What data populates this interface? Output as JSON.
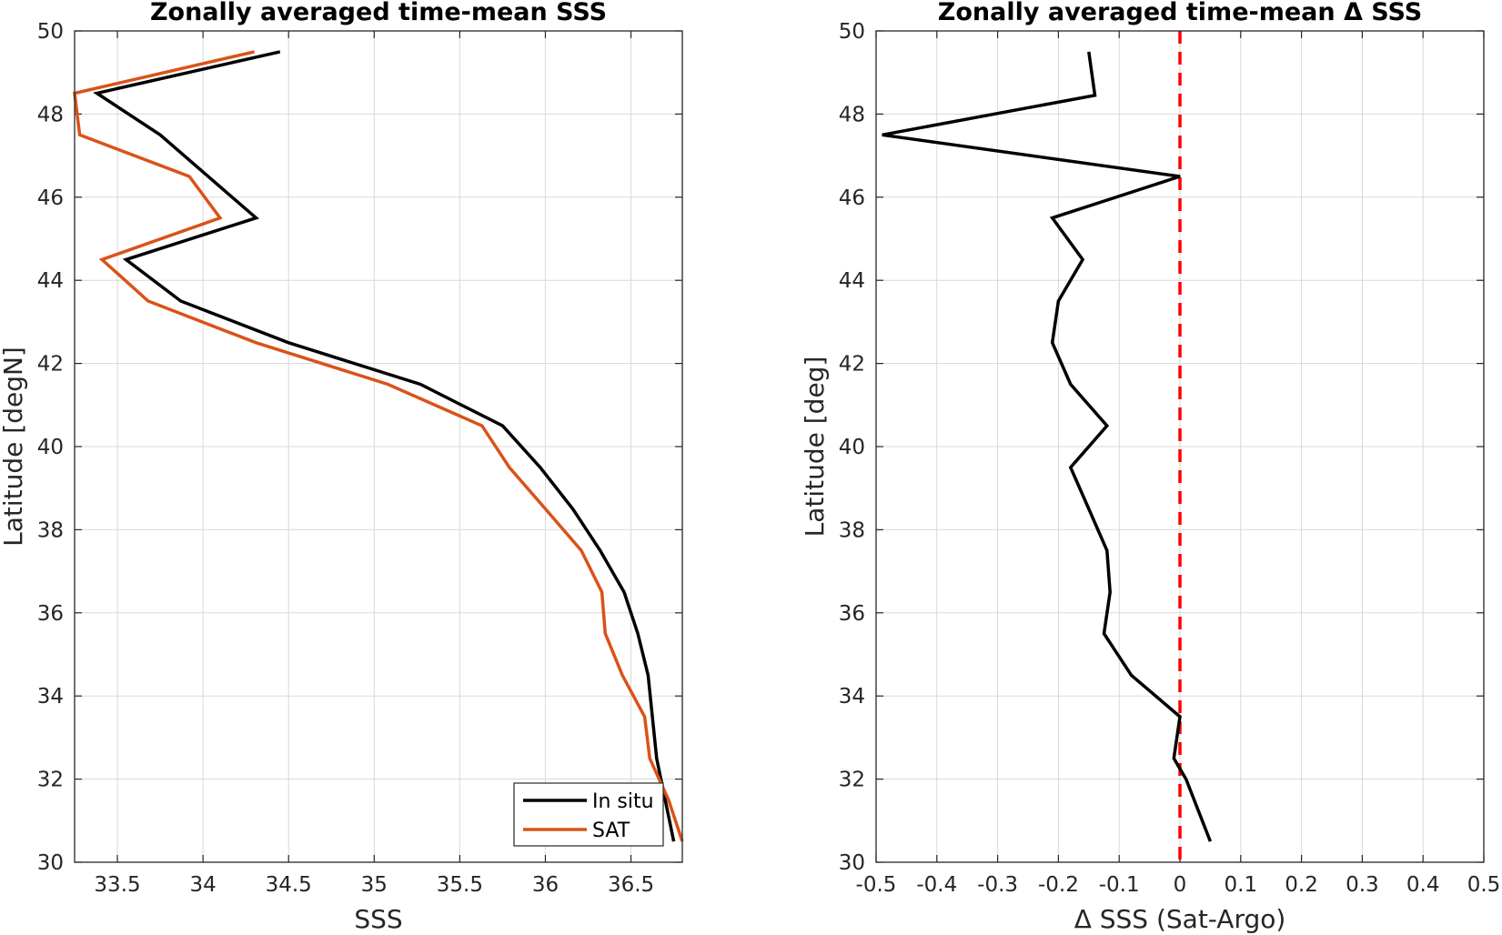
{
  "chart_data": [
    {
      "type": "line",
      "title": "Zonally averaged time-mean SSS",
      "xlabel": "SSS",
      "ylabel": "Latitude [degN]",
      "xlim": [
        33.25,
        36.8
      ],
      "ylim": [
        30,
        50
      ],
      "xticks": [
        33.5,
        34,
        34.5,
        35,
        35.5,
        36,
        36.5
      ],
      "xtick_labels": [
        "33.5",
        "34",
        "34.5",
        "35",
        "35.5",
        "36",
        "36.5"
      ],
      "yticks": [
        30,
        32,
        34,
        36,
        38,
        40,
        42,
        44,
        46,
        48,
        50
      ],
      "ytick_labels": [
        "30",
        "32",
        "34",
        "36",
        "38",
        "40",
        "42",
        "44",
        "46",
        "48",
        "50"
      ],
      "grid": true,
      "legend": {
        "position": "bottom-right",
        "entries": [
          "In situ",
          "SAT"
        ]
      },
      "series": [
        {
          "name": "In situ",
          "color": "#000000",
          "x": [
            34.45,
            33.38,
            33.75,
            34.31,
            33.55,
            33.87,
            34.5,
            35.27,
            35.75,
            35.97,
            36.16,
            36.32,
            36.46,
            36.54,
            36.6,
            36.65,
            36.7,
            36.75
          ],
          "y": [
            49.5,
            48.5,
            47.5,
            45.5,
            44.5,
            43.5,
            42.5,
            41.5,
            40.5,
            39.5,
            38.5,
            37.5,
            36.5,
            35.5,
            34.5,
            32.5,
            31.5,
            30.5
          ]
        },
        {
          "name": "SAT",
          "color": "#D95319",
          "x": [
            34.3,
            33.25,
            33.28,
            33.92,
            34.1,
            33.41,
            33.68,
            34.31,
            35.08,
            35.63,
            35.79,
            36.0,
            36.21,
            36.33,
            36.35,
            36.45,
            36.58,
            36.61,
            36.72,
            36.8
          ],
          "y": [
            49.5,
            48.5,
            47.5,
            46.5,
            45.5,
            44.5,
            43.5,
            42.5,
            41.5,
            40.5,
            39.5,
            38.5,
            37.5,
            36.5,
            35.5,
            34.5,
            33.5,
            32.5,
            31.5,
            30.5
          ]
        }
      ]
    },
    {
      "type": "line",
      "title": "Zonally averaged time-mean Δ SSS",
      "xlabel": "Δ SSS (Sat-Argo)",
      "ylabel": "Latitude [deg]",
      "xlim": [
        -0.5,
        0.5
      ],
      "ylim": [
        30,
        50
      ],
      "xticks": [
        -0.5,
        -0.4,
        -0.3,
        -0.2,
        -0.1,
        0,
        0.1,
        0.2,
        0.3,
        0.4,
        0.5
      ],
      "xtick_labels": [
        "-0.5",
        "-0.4",
        "-0.3",
        "-0.2",
        "-0.1",
        "0",
        "0.1",
        "0.2",
        "0.3",
        "0.4",
        "0.5"
      ],
      "yticks": [
        30,
        32,
        34,
        36,
        38,
        40,
        42,
        44,
        46,
        48,
        50
      ],
      "ytick_labels": [
        "30",
        "32",
        "34",
        "36",
        "38",
        "40",
        "42",
        "44",
        "46",
        "48",
        "50"
      ],
      "grid": true,
      "reference_line": {
        "x": 0,
        "color": "#FF0000",
        "style": "dashed"
      },
      "series": [
        {
          "color": "#000000",
          "x": [
            -0.15,
            -0.14,
            -0.49,
            0.0,
            -0.21,
            -0.16,
            -0.2,
            -0.21,
            -0.18,
            -0.12,
            -0.18,
            -0.15,
            -0.12,
            -0.115,
            -0.125,
            -0.08,
            0.0,
            -0.01,
            0.01,
            0.05
          ],
          "y": [
            49.5,
            48.45,
            47.5,
            46.5,
            45.5,
            44.5,
            43.5,
            42.5,
            41.5,
            40.5,
            39.5,
            38.5,
            37.5,
            36.5,
            35.5,
            34.5,
            33.5,
            32.5,
            32.0,
            30.5
          ]
        }
      ]
    }
  ]
}
